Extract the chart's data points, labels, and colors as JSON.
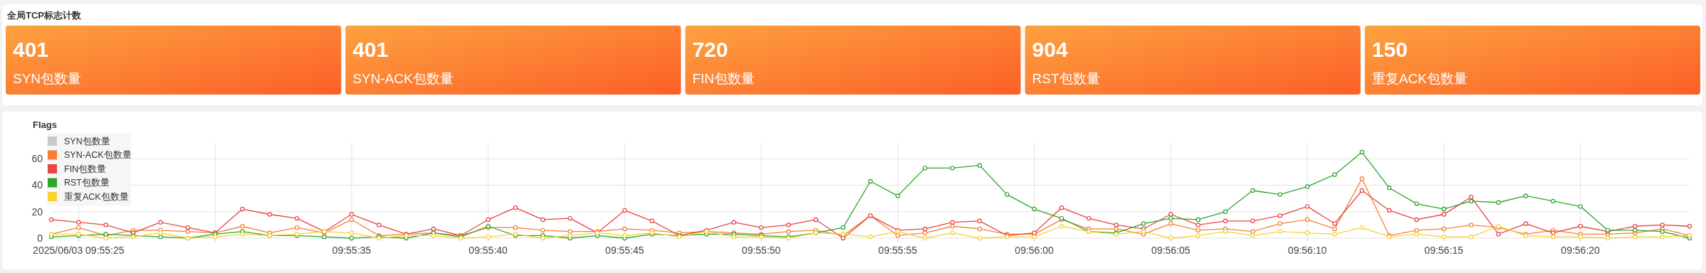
{
  "chart_data": [
    {
      "type": "other",
      "title": "全局TCP标志计数",
      "categories": [
        "SYN包数量",
        "SYN-ACK包数量",
        "FIN包数量",
        "RST包数量",
        "重复ACK包数量"
      ],
      "values": [
        401,
        401,
        720,
        904,
        150
      ],
      "data_labels": true
    },
    {
      "type": "line",
      "title": "Flags",
      "marker": "circle",
      "grid": true,
      "legend": "top left",
      "x": [
        "2025-06-03T09:55:24",
        "2025-06-03T09:55:25",
        "2025-06-03T09:55:26",
        "2025-06-03T09:55:27",
        "2025-06-03T09:55:28",
        "2025-06-03T09:55:29",
        "2025-06-03T09:55:30",
        "2025-06-03T09:55:31",
        "2025-06-03T09:55:32",
        "2025-06-03T09:55:33",
        "2025-06-03T09:55:34",
        "2025-06-03T09:55:35",
        "2025-06-03T09:55:36",
        "2025-06-03T09:55:37",
        "2025-06-03T09:55:38",
        "2025-06-03T09:55:39",
        "2025-06-03T09:55:40",
        "2025-06-03T09:55:41",
        "2025-06-03T09:55:42",
        "2025-06-03T09:55:43",
        "2025-06-03T09:55:44",
        "2025-06-03T09:55:45",
        "2025-06-03T09:55:46",
        "2025-06-03T09:55:47",
        "2025-06-03T09:55:48",
        "2025-06-03T09:55:49",
        "2025-06-03T09:55:50",
        "2025-06-03T09:55:51",
        "2025-06-03T09:55:52",
        "2025-06-03T09:55:53",
        "2025-06-03T09:55:54",
        "2025-06-03T09:55:55",
        "2025-06-03T09:55:56",
        "2025-06-03T09:55:57",
        "2025-06-03T09:55:58",
        "2025-06-03T09:55:59",
        "2025-06-03T09:56:00",
        "2025-06-03T09:56:01",
        "2025-06-03T09:56:02",
        "2025-06-03T09:56:03",
        "2025-06-03T09:56:04",
        "2025-06-03T09:56:05",
        "2025-06-03T09:56:06",
        "2025-06-03T09:56:07",
        "2025-06-03T09:56:08",
        "2025-06-03T09:56:09",
        "2025-06-03T09:56:10",
        "2025-06-03T09:56:11",
        "2025-06-03T09:56:12",
        "2025-06-03T09:56:13",
        "2025-06-03T09:56:14",
        "2025-06-03T09:56:15",
        "2025-06-03T09:56:16",
        "2025-06-03T09:56:17",
        "2025-06-03T09:56:18",
        "2025-06-03T09:56:19",
        "2025-06-03T09:56:20",
        "2025-06-03T09:56:21",
        "2025-06-03T09:56:22",
        "2025-06-03T09:56:23",
        "2025-06-03T09:56:24"
      ],
      "xlim": [
        "2025-06-03T09:55:24",
        "2025-06-03T09:56:24"
      ],
      "xticks": [
        {
          "value": "2025-06-03T09:55:25",
          "label": "2025/06/03 09:55:25"
        },
        {
          "value": "2025-06-03T09:55:30",
          "label": null
        },
        {
          "value": "2025-06-03T09:55:35",
          "label": "09:55:35"
        },
        {
          "value": "2025-06-03T09:55:40",
          "label": "09:55:40"
        },
        {
          "value": "2025-06-03T09:55:45",
          "label": "09:55:45"
        },
        {
          "value": "2025-06-03T09:55:50",
          "label": "09:55:50"
        },
        {
          "value": "2025-06-03T09:55:55",
          "label": "09:55:55"
        },
        {
          "value": "2025-06-03T09:56:00",
          "label": "09:56:00"
        },
        {
          "value": "2025-06-03T09:56:05",
          "label": "09:56:05"
        },
        {
          "value": "2025-06-03T09:56:10",
          "label": "09:56:10"
        },
        {
          "value": "2025-06-03T09:56:15",
          "label": "09:56:15"
        },
        {
          "value": "2025-06-03T09:56:20",
          "label": "09:56:20"
        }
      ],
      "ylim": [
        0,
        72
      ],
      "yticks": [
        0,
        20,
        40,
        60
      ],
      "series": [
        {
          "name": "SYN包数量",
          "color": "#c5cdc9",
          "values": [
            null,
            null,
            null,
            null,
            null,
            null,
            null,
            null,
            null,
            null,
            null,
            null,
            null,
            null,
            null,
            null,
            null,
            null,
            null,
            null,
            null,
            null,
            null,
            null,
            null,
            null,
            null,
            null,
            null,
            null,
            null,
            null,
            null,
            null,
            null,
            null,
            null,
            null,
            null,
            null,
            null,
            null,
            null,
            null,
            null,
            null,
            null,
            null,
            null,
            null,
            null,
            null,
            null,
            null,
            null,
            null,
            null,
            null,
            null,
            null,
            null
          ]
        },
        {
          "name": "SYN-ACK包数量",
          "color": "#f77d36",
          "values": [
            3,
            8,
            2,
            6,
            6,
            5,
            4,
            9,
            4,
            8,
            4,
            14,
            2,
            3,
            4,
            2,
            8,
            8,
            6,
            5,
            5,
            7,
            6,
            4,
            5,
            4,
            3,
            5,
            6,
            2,
            17,
            2,
            4,
            9,
            7,
            3,
            3,
            14,
            7,
            7,
            3,
            11,
            6,
            7,
            5,
            11,
            14,
            7,
            45,
            2,
            6,
            7,
            10,
            8,
            3,
            6,
            3,
            3,
            4,
            7,
            2
          ]
        },
        {
          "name": "FIN包数量",
          "color": "#ea4343",
          "values": [
            14,
            12,
            10,
            4,
            12,
            8,
            4,
            22,
            18,
            15,
            5,
            18,
            10,
            3,
            7,
            2,
            14,
            23,
            14,
            15,
            4,
            21,
            13,
            2,
            6,
            12,
            8,
            10,
            14,
            0,
            17,
            6,
            7,
            12,
            13,
            2,
            4,
            23,
            15,
            10,
            7,
            18,
            10,
            13,
            13,
            17,
            24,
            11,
            36,
            21,
            14,
            18,
            31,
            3,
            11,
            4,
            9,
            5,
            9,
            10,
            9
          ]
        },
        {
          "name": "RST包数量",
          "color": "#2ca52c",
          "values": [
            1,
            2,
            3,
            2,
            1,
            0,
            3,
            5,
            2,
            2,
            1,
            0,
            1,
            0,
            4,
            1,
            9,
            2,
            2,
            0,
            2,
            0,
            3,
            2,
            3,
            3,
            2,
            1,
            4,
            8,
            43,
            32,
            53,
            53,
            55,
            33,
            22,
            15,
            5,
            4,
            11,
            15,
            14,
            20,
            36,
            33,
            39,
            48,
            65,
            38,
            26,
            22,
            28,
            27,
            32,
            28,
            24,
            6,
            6,
            5,
            0
          ]
        },
        {
          "name": "重复ACK包数量",
          "color": "#f6d232",
          "values": [
            3,
            3,
            0,
            1,
            4,
            0,
            1,
            3,
            2,
            3,
            5,
            4,
            0,
            2,
            2,
            0,
            1,
            3,
            0,
            2,
            4,
            2,
            4,
            1,
            5,
            1,
            1,
            0,
            4,
            3,
            1,
            5,
            0,
            4,
            0,
            1,
            1,
            9,
            5,
            3,
            5,
            0,
            2,
            5,
            2,
            5,
            4,
            3,
            8,
            1,
            3,
            1,
            1,
            9,
            2,
            1,
            1,
            0,
            1,
            1,
            2
          ]
        }
      ]
    }
  ]
}
